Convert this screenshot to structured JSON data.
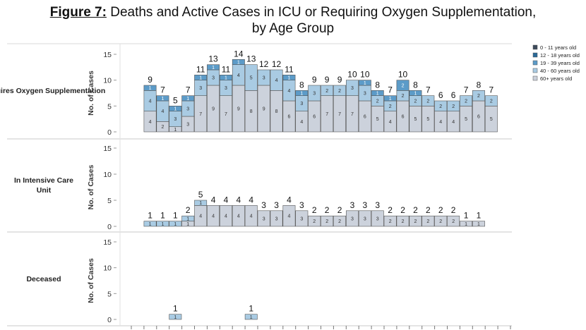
{
  "figure_title": {
    "number": "Figure 7:",
    "line1": "Deaths and Active Cases in ICU or Requiring Oxygen Supplementation,",
    "line2": "by Age Group"
  },
  "chart_data": {
    "type": "bar",
    "stacked": true,
    "ylabel": "No. of Cases",
    "ylim": [
      0,
      15
    ],
    "yticks": [
      0,
      5,
      10,
      15
    ],
    "x_tick_labels": "not legible",
    "legend": [
      {
        "name": "0 - 11 years old",
        "color": "#3d4b5c"
      },
      {
        "name": "12 - 18 years old",
        "color": "#2b6a97"
      },
      {
        "name": "19 - 39 years old",
        "color": "#5c9bc8"
      },
      {
        "name": "40 - 60 years old",
        "color": "#a9cbe3"
      },
      {
        "name": "60+ years old",
        "color": "#ccd2dc"
      }
    ],
    "panels": [
      {
        "label": "Requires Oxygen Supplementation",
        "bars": [
          {
            "total": "",
            "segments": []
          },
          {
            "total": "9",
            "segments": [
              {
                "group": 4,
                "value": 4
              },
              {
                "group": 3,
                "value": 4
              },
              {
                "group": 2,
                "value": 1
              }
            ]
          },
          {
            "total": "7",
            "segments": [
              {
                "group": 4,
                "value": 2
              },
              {
                "group": 3,
                "value": 4
              },
              {
                "group": 2,
                "value": 1
              }
            ]
          },
          {
            "total": "5",
            "segments": [
              {
                "group": 4,
                "value": 1
              },
              {
                "group": 3,
                "value": 3
              },
              {
                "group": 2,
                "value": 1
              }
            ]
          },
          {
            "total": "7",
            "segments": [
              {
                "group": 4,
                "value": 3
              },
              {
                "group": 3,
                "value": 3
              },
              {
                "group": 2,
                "value": 1
              }
            ]
          },
          {
            "total": "11",
            "segments": [
              {
                "group": 4,
                "value": 7
              },
              {
                "group": 3,
                "value": 3
              },
              {
                "group": 2,
                "value": 1
              }
            ]
          },
          {
            "total": "13",
            "segments": [
              {
                "group": 4,
                "value": 9
              },
              {
                "group": 3,
                "value": 3
              },
              {
                "group": 2,
                "value": 1
              }
            ]
          },
          {
            "total": "11",
            "segments": [
              {
                "group": 4,
                "value": 7
              },
              {
                "group": 3,
                "value": 3
              },
              {
                "group": 2,
                "value": 1
              }
            ]
          },
          {
            "total": "14",
            "segments": [
              {
                "group": 4,
                "value": 9
              },
              {
                "group": 3,
                "value": 4
              },
              {
                "group": 2,
                "value": 1
              }
            ]
          },
          {
            "total": "13",
            "segments": [
              {
                "group": 4,
                "value": 8
              },
              {
                "group": 3,
                "value": 5
              }
            ]
          },
          {
            "total": "12",
            "segments": [
              {
                "group": 4,
                "value": 9
              },
              {
                "group": 3,
                "value": 3
              }
            ]
          },
          {
            "total": "12",
            "segments": [
              {
                "group": 4,
                "value": 8
              },
              {
                "group": 3,
                "value": 4
              }
            ]
          },
          {
            "total": "11",
            "segments": [
              {
                "group": 4,
                "value": 6
              },
              {
                "group": 3,
                "value": 4
              },
              {
                "group": 2,
                "value": 1
              }
            ]
          },
          {
            "total": "8",
            "segments": [
              {
                "group": 4,
                "value": 4
              },
              {
                "group": 3,
                "value": 3
              },
              {
                "group": 2,
                "value": 1
              }
            ]
          },
          {
            "total": "9",
            "segments": [
              {
                "group": 4,
                "value": 6
              },
              {
                "group": 3,
                "value": 3
              }
            ]
          },
          {
            "total": "9",
            "segments": [
              {
                "group": 4,
                "value": 7
              },
              {
                "group": 3,
                "value": 2
              }
            ]
          },
          {
            "total": "9",
            "segments": [
              {
                "group": 4,
                "value": 7
              },
              {
                "group": 3,
                "value": 2
              }
            ]
          },
          {
            "total": "10",
            "segments": [
              {
                "group": 4,
                "value": 7
              },
              {
                "group": 3,
                "value": 3
              }
            ]
          },
          {
            "total": "10",
            "segments": [
              {
                "group": 4,
                "value": 6
              },
              {
                "group": 3,
                "value": 3
              },
              {
                "group": 2,
                "value": 1
              }
            ]
          },
          {
            "total": "8",
            "segments": [
              {
                "group": 4,
                "value": 5
              },
              {
                "group": 3,
                "value": 2
              },
              {
                "group": 2,
                "value": 1
              }
            ]
          },
          {
            "total": "7",
            "segments": [
              {
                "group": 4,
                "value": 4
              },
              {
                "group": 3,
                "value": 2
              },
              {
                "group": 2,
                "value": 1
              }
            ]
          },
          {
            "total": "10",
            "segments": [
              {
                "group": 4,
                "value": 6
              },
              {
                "group": 3,
                "value": 2
              },
              {
                "group": 2,
                "value": 2
              }
            ]
          },
          {
            "total": "8",
            "segments": [
              {
                "group": 4,
                "value": 5
              },
              {
                "group": 3,
                "value": 2
              },
              {
                "group": 2,
                "value": 1
              }
            ]
          },
          {
            "total": "7",
            "segments": [
              {
                "group": 4,
                "value": 5
              },
              {
                "group": 3,
                "value": 2
              }
            ]
          },
          {
            "total": "6",
            "segments": [
              {
                "group": 4,
                "value": 4
              },
              {
                "group": 3,
                "value": 2
              }
            ]
          },
          {
            "total": "6",
            "segments": [
              {
                "group": 4,
                "value": 4
              },
              {
                "group": 3,
                "value": 2
              }
            ]
          },
          {
            "total": "7",
            "segments": [
              {
                "group": 4,
                "value": 5
              },
              {
                "group": 3,
                "value": 2
              }
            ]
          },
          {
            "total": "8",
            "segments": [
              {
                "group": 4,
                "value": 6
              },
              {
                "group": 3,
                "value": 2
              }
            ]
          },
          {
            "total": "7",
            "segments": [
              {
                "group": 4,
                "value": 5
              },
              {
                "group": 3,
                "value": 2
              }
            ]
          },
          {
            "total": "",
            "segments": []
          }
        ]
      },
      {
        "label": "In Intensive Care Unit",
        "bars": [
          {
            "total": "",
            "segments": []
          },
          {
            "total": "1",
            "segments": [
              {
                "group": 3,
                "value": 1
              }
            ]
          },
          {
            "total": "1",
            "segments": [
              {
                "group": 3,
                "value": 1
              }
            ]
          },
          {
            "total": "1",
            "segments": [
              {
                "group": 3,
                "value": 1
              }
            ]
          },
          {
            "total": "2",
            "segments": [
              {
                "group": 4,
                "value": 1
              },
              {
                "group": 3,
                "value": 1
              }
            ]
          },
          {
            "total": "5",
            "segments": [
              {
                "group": 4,
                "value": 4
              },
              {
                "group": 3,
                "value": 1
              }
            ]
          },
          {
            "total": "4",
            "segments": [
              {
                "group": 4,
                "value": 4
              }
            ]
          },
          {
            "total": "4",
            "segments": [
              {
                "group": 4,
                "value": 4
              }
            ]
          },
          {
            "total": "4",
            "segments": [
              {
                "group": 4,
                "value": 4
              }
            ]
          },
          {
            "total": "4",
            "segments": [
              {
                "group": 4,
                "value": 4
              }
            ]
          },
          {
            "total": "3",
            "segments": [
              {
                "group": 4,
                "value": 3
              }
            ]
          },
          {
            "total": "3",
            "segments": [
              {
                "group": 4,
                "value": 3
              }
            ]
          },
          {
            "total": "4",
            "segments": [
              {
                "group": 4,
                "value": 4
              }
            ]
          },
          {
            "total": "3",
            "segments": [
              {
                "group": 4,
                "value": 3
              }
            ]
          },
          {
            "total": "2",
            "segments": [
              {
                "group": 4,
                "value": 2
              }
            ]
          },
          {
            "total": "2",
            "segments": [
              {
                "group": 4,
                "value": 2
              }
            ]
          },
          {
            "total": "2",
            "segments": [
              {
                "group": 4,
                "value": 2
              }
            ]
          },
          {
            "total": "3",
            "segments": [
              {
                "group": 4,
                "value": 3
              }
            ]
          },
          {
            "total": "3",
            "segments": [
              {
                "group": 4,
                "value": 3
              }
            ]
          },
          {
            "total": "3",
            "segments": [
              {
                "group": 4,
                "value": 3
              }
            ]
          },
          {
            "total": "2",
            "segments": [
              {
                "group": 4,
                "value": 2
              }
            ]
          },
          {
            "total": "2",
            "segments": [
              {
                "group": 4,
                "value": 2
              }
            ]
          },
          {
            "total": "2",
            "segments": [
              {
                "group": 4,
                "value": 2
              }
            ]
          },
          {
            "total": "2",
            "segments": [
              {
                "group": 4,
                "value": 2
              }
            ]
          },
          {
            "total": "2",
            "segments": [
              {
                "group": 4,
                "value": 2
              }
            ]
          },
          {
            "total": "2",
            "segments": [
              {
                "group": 4,
                "value": 2
              }
            ]
          },
          {
            "total": "1",
            "segments": [
              {
                "group": 4,
                "value": 1
              }
            ]
          },
          {
            "total": "1",
            "segments": [
              {
                "group": 4,
                "value": 1
              }
            ]
          },
          {
            "total": "",
            "segments": []
          },
          {
            "total": "",
            "segments": []
          }
        ]
      },
      {
        "label": "Deceased",
        "bars": [
          {
            "total": "",
            "segments": []
          },
          {
            "total": "",
            "segments": []
          },
          {
            "total": "",
            "segments": []
          },
          {
            "total": "1",
            "segments": [
              {
                "group": 3,
                "value": 1
              }
            ]
          },
          {
            "total": "",
            "segments": []
          },
          {
            "total": "",
            "segments": []
          },
          {
            "total": "",
            "segments": []
          },
          {
            "total": "",
            "segments": []
          },
          {
            "total": "",
            "segments": []
          },
          {
            "total": "1",
            "segments": [
              {
                "group": 3,
                "value": 1
              }
            ]
          },
          {
            "total": "",
            "segments": []
          },
          {
            "total": "",
            "segments": []
          },
          {
            "total": "",
            "segments": []
          },
          {
            "total": "",
            "segments": []
          },
          {
            "total": "",
            "segments": []
          },
          {
            "total": "",
            "segments": []
          },
          {
            "total": "",
            "segments": []
          },
          {
            "total": "",
            "segments": []
          },
          {
            "total": "",
            "segments": []
          },
          {
            "total": "",
            "segments": []
          },
          {
            "total": "",
            "segments": []
          },
          {
            "total": "",
            "segments": []
          },
          {
            "total": "",
            "segments": []
          },
          {
            "total": "",
            "segments": []
          },
          {
            "total": "",
            "segments": []
          },
          {
            "total": "",
            "segments": []
          },
          {
            "total": "",
            "segments": []
          },
          {
            "total": "",
            "segments": []
          },
          {
            "total": "",
            "segments": []
          },
          {
            "total": "",
            "segments": []
          }
        ]
      }
    ]
  }
}
